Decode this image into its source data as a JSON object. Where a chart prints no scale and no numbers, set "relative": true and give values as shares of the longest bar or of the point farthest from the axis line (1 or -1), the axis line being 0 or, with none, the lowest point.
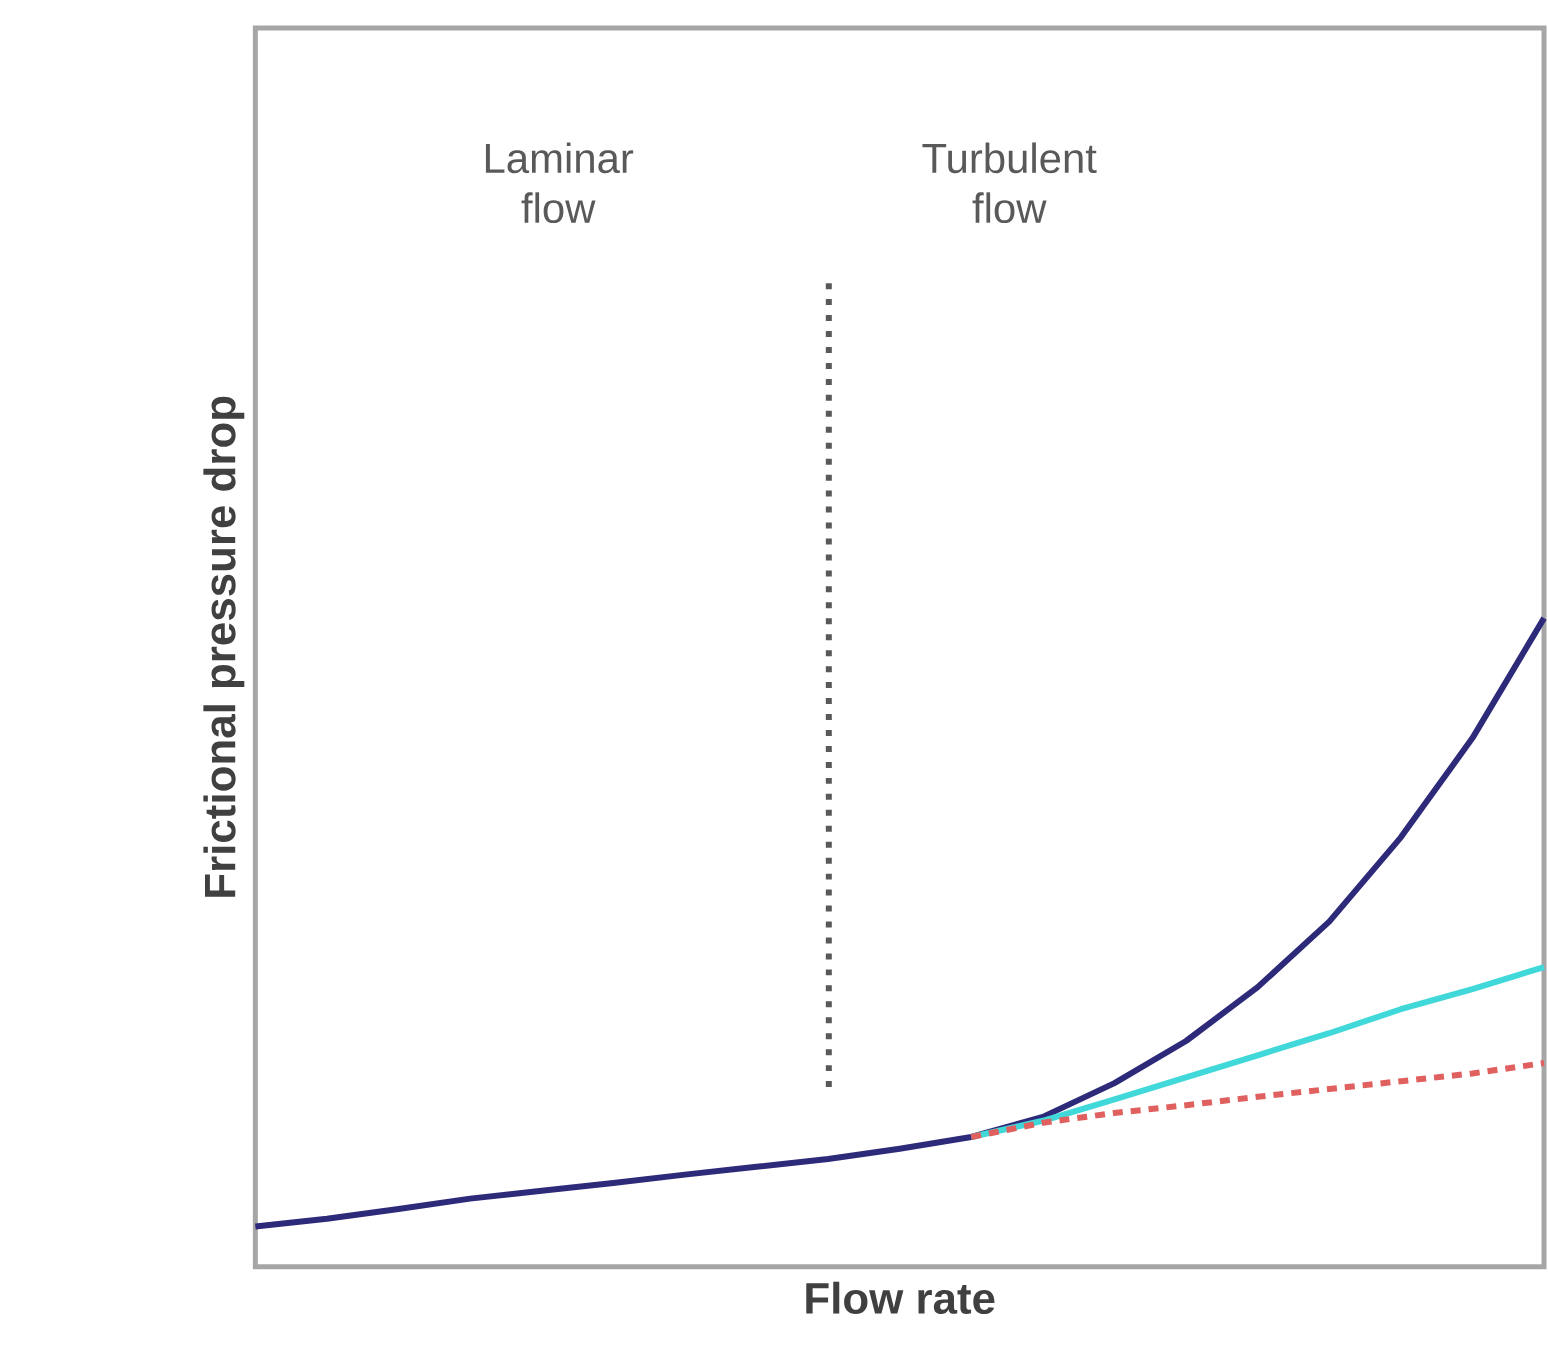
{
  "chart_data": {
    "type": "line",
    "relative": true,
    "xlabel": "Flow rate",
    "ylabel": "Frictional pressure drop",
    "categories": [
      null,
      null,
      null,
      null,
      null,
      null,
      null,
      null,
      null,
      null,
      null,
      null,
      null,
      null,
      null,
      null,
      null,
      null,
      null
    ],
    "series": [
      {
        "color": "#2e2a7a",
        "line_style": "solid",
        "values": [
          0.062,
          0.074,
          0.089,
          0.105,
          0.117,
          0.129,
          0.142,
          0.154,
          0.166,
          0.182,
          0.2,
          0.231,
          0.283,
          0.348,
          0.431,
          0.532,
          0.662,
          0.815,
          1
        ]
      },
      {
        "color": "#40d8d8",
        "line_style": "solid",
        "values": [
          null,
          null,
          null,
          null,
          null,
          null,
          null,
          null,
          null,
          null,
          0.2,
          0.225,
          0.258,
          0.292,
          0.326,
          0.36,
          0.397,
          0.428,
          0.462
        ]
      },
      {
        "color": "#e06060",
        "line_style": "dashed",
        "values": [
          null,
          null,
          null,
          null,
          null,
          null,
          null,
          null,
          null,
          null,
          0.2,
          0.222,
          0.237,
          0.249,
          0.262,
          0.274,
          0.286,
          0.298,
          0.314
        ]
      }
    ],
    "annotations": [
      "Laminar flow",
      "Turbulent flow"
    ]
  }
}
